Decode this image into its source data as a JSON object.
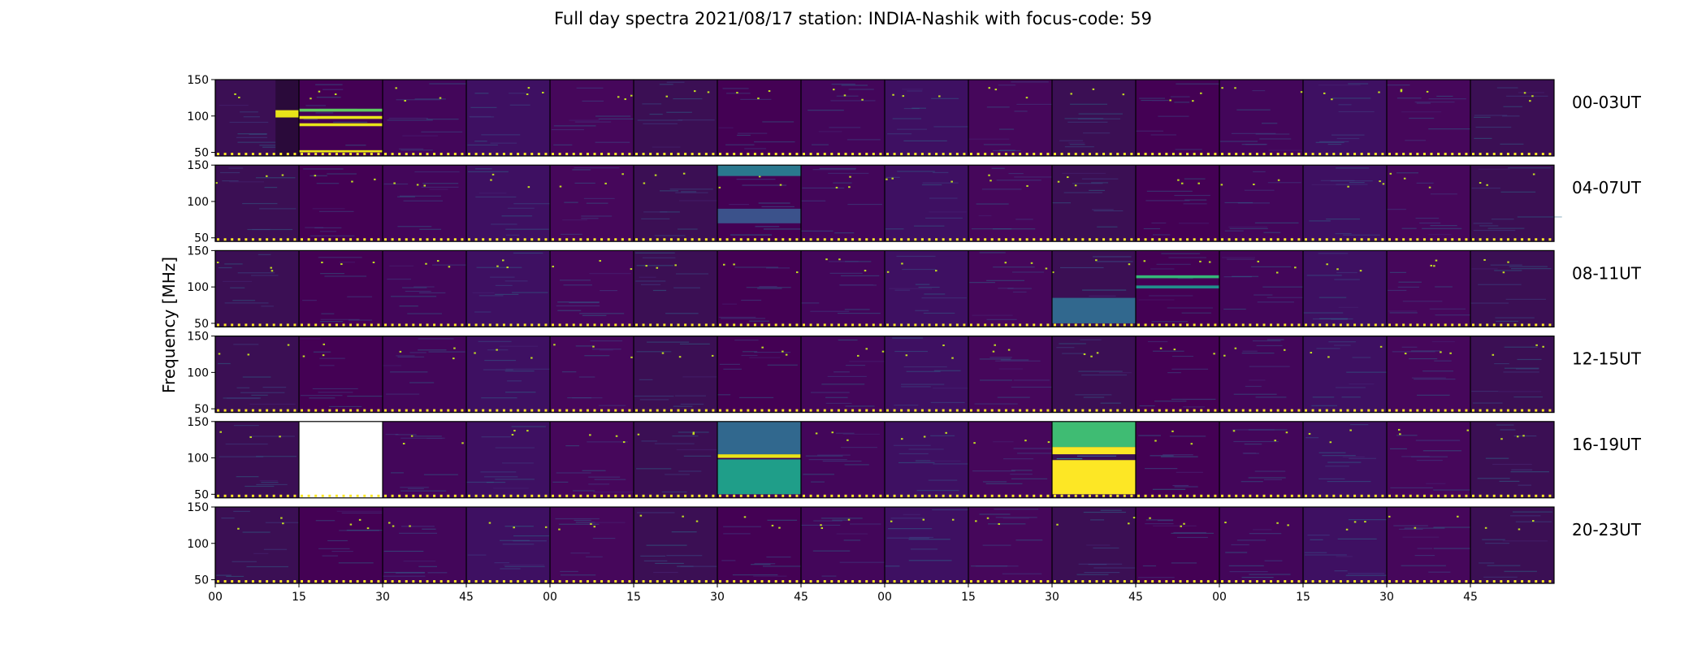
{
  "chart_data": {
    "type": "heatmap",
    "title": "Full day spectra 2021/08/17 station: INDIA-Nashik with focus-code: 59",
    "xlabel": "",
    "ylabel": "Frequency [MHz]",
    "y_ticks": [
      "150",
      "100",
      "50"
    ],
    "x_ticks": [
      "00",
      "15",
      "30",
      "45",
      "00",
      "15",
      "30",
      "45",
      "00",
      "15",
      "30",
      "45",
      "00",
      "15",
      "30",
      "45"
    ],
    "ylim": [
      45,
      150
    ],
    "colormap": "viridis",
    "panels_per_row": 16,
    "panel_minutes": 15,
    "rows": [
      {
        "label": "00-03UT",
        "panels": [
          {
            "level": 0.06,
            "bands": [
              {
                "from": 98,
                "to": 108,
                "color": "#e8e419"
              }
            ],
            "dark_from": 0.72
          },
          {
            "level": 0.08,
            "bands": [
              {
                "from": 106,
                "to": 110,
                "color": "#5ec962"
              },
              {
                "from": 96,
                "to": 100,
                "color": "#e8e419"
              },
              {
                "from": 86,
                "to": 90,
                "color": "#e8e419"
              },
              {
                "from": 50,
                "to": 53,
                "color": "#e8e419"
              }
            ]
          },
          {
            "level": 0.05
          },
          {
            "level": 0.05
          },
          {
            "level": 0.05
          },
          {
            "level": 0.05
          },
          {
            "level": 0.05
          },
          {
            "level": 0.05
          },
          {
            "level": 0.05
          },
          {
            "level": 0.05
          },
          {
            "level": 0.05
          },
          {
            "level": 0.05
          },
          {
            "level": 0.05
          },
          {
            "level": 0.05
          },
          {
            "level": 0.05
          },
          {
            "level": 0.05
          }
        ]
      },
      {
        "label": "04-07UT",
        "panels": [
          {
            "level": 0.05
          },
          {
            "level": 0.05
          },
          {
            "level": 0.05
          },
          {
            "level": 0.05
          },
          {
            "level": 0.05
          },
          {
            "level": 0.05
          },
          {
            "level": 0.12,
            "bands": [
              {
                "from": 135,
                "to": 150,
                "color": "#2a788e"
              },
              {
                "from": 70,
                "to": 90,
                "color": "#3b528b"
              }
            ]
          },
          {
            "level": 0.05
          },
          {
            "level": 0.05
          },
          {
            "level": 0.05
          },
          {
            "level": 0.05
          },
          {
            "level": 0.05
          },
          {
            "level": 0.05
          },
          {
            "level": 0.05
          },
          {
            "level": 0.05
          },
          {
            "level": 0.05
          }
        ]
      },
      {
        "label": "08-11UT",
        "panels": [
          {
            "level": 0.05
          },
          {
            "level": 0.05
          },
          {
            "level": 0.05
          },
          {
            "level": 0.05
          },
          {
            "level": 0.08
          },
          {
            "level": 0.06
          },
          {
            "level": 0.05
          },
          {
            "level": 0.05
          },
          {
            "level": 0.05
          },
          {
            "level": 0.05
          },
          {
            "level": 0.12,
            "bands": [
              {
                "from": 50,
                "to": 85,
                "color": "#31688e"
              }
            ]
          },
          {
            "level": 0.03,
            "bands": [
              {
                "from": 112,
                "to": 116,
                "color": "#35b779"
              },
              {
                "from": 98,
                "to": 102,
                "color": "#21918c"
              }
            ]
          },
          {
            "level": 0.05
          },
          {
            "level": 0.05
          },
          {
            "level": 0.05
          },
          {
            "level": 0.05
          }
        ]
      },
      {
        "label": "12-15UT",
        "panels": [
          {
            "level": 0.05
          },
          {
            "level": 0.05
          },
          {
            "level": 0.05
          },
          {
            "level": 0.05
          },
          {
            "level": 0.05
          },
          {
            "level": 0.05
          },
          {
            "level": 0.05
          },
          {
            "level": 0.05
          },
          {
            "level": 0.05
          },
          {
            "level": 0.05
          },
          {
            "level": 0.05
          },
          {
            "level": 0.05
          },
          {
            "level": 0.05
          },
          {
            "level": 0.05
          },
          {
            "level": 0.05
          },
          {
            "level": 0.05
          }
        ]
      },
      {
        "label": "16-19UT",
        "panels": [
          {
            "level": 0.05
          },
          {
            "level": -1
          },
          {
            "level": 0.05
          },
          {
            "level": 0.05
          },
          {
            "level": 0.05
          },
          {
            "level": 0.05
          },
          {
            "level": 0.08,
            "bands": [
              {
                "from": 100,
                "to": 105,
                "color": "#e8e419"
              },
              {
                "from": 50,
                "to": 98,
                "color": "#1f9e89"
              },
              {
                "from": 105,
                "to": 150,
                "color": "#31688e"
              }
            ]
          },
          {
            "level": 0.05
          },
          {
            "level": 0.05
          },
          {
            "level": 0.06
          },
          {
            "level": 0.55,
            "bands": [
              {
                "from": 50,
                "to": 97,
                "color": "#fde725"
              },
              {
                "from": 105,
                "to": 115,
                "color": "#fde725"
              },
              {
                "from": 115,
                "to": 150,
                "color": "#3fbc73"
              }
            ]
          },
          {
            "level": 0.1
          },
          {
            "level": 0.06
          },
          {
            "level": 0.06
          },
          {
            "level": 0.06
          },
          {
            "level": 0.08
          }
        ]
      },
      {
        "label": "20-23UT",
        "panels": [
          {
            "level": 0.06
          },
          {
            "level": 0.05
          },
          {
            "level": 0.07
          },
          {
            "level": 0.06
          },
          {
            "level": 0.05
          },
          {
            "level": 0.08
          },
          {
            "level": 0.07
          },
          {
            "level": 0.06
          },
          {
            "level": 0.07
          },
          {
            "level": 0.06
          },
          {
            "level": 0.07
          },
          {
            "level": 0.06
          },
          {
            "level": 0.08
          },
          {
            "level": 0.07
          },
          {
            "level": 0.06
          },
          {
            "level": 0.06
          }
        ]
      }
    ]
  }
}
